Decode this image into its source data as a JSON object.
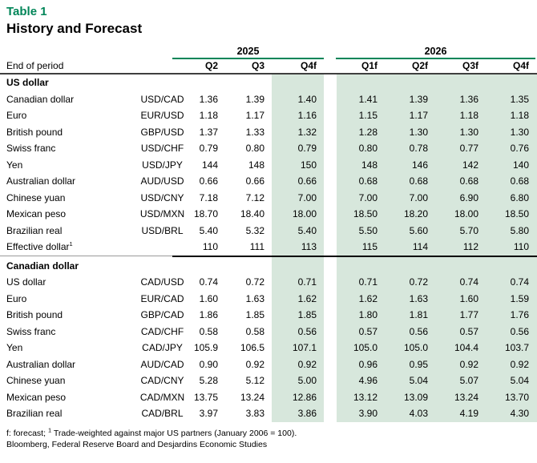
{
  "title": "Table 1",
  "subtitle": "History and Forecast",
  "colors": {
    "accent_green": "#008558",
    "forecast_shade_green": "#d7e7dc",
    "header_rule_gray": "#3f3f3f"
  },
  "table": {
    "corner_label": "End of period",
    "year_groups": [
      {
        "label": "2025",
        "quarters": [
          "Q2",
          "Q3",
          "Q4f"
        ]
      },
      {
        "label": "2026",
        "quarters": [
          "Q1f",
          "Q2f",
          "Q3f",
          "Q4f"
        ]
      }
    ],
    "sections": [
      {
        "title": "US dollar",
        "rows": [
          {
            "label": "Canadian dollar",
            "pair": "USD/CAD",
            "values": [
              "1.36",
              "1.39",
              "1.40",
              "1.41",
              "1.39",
              "1.36",
              "1.35"
            ]
          },
          {
            "label": "Euro",
            "pair": "EUR/USD",
            "values": [
              "1.18",
              "1.17",
              "1.16",
              "1.15",
              "1.17",
              "1.18",
              "1.18"
            ]
          },
          {
            "label": "British pound",
            "pair": "GBP/USD",
            "values": [
              "1.37",
              "1.33",
              "1.32",
              "1.28",
              "1.30",
              "1.30",
              "1.30"
            ]
          },
          {
            "label": "Swiss franc",
            "pair": "USD/CHF",
            "values": [
              "0.79",
              "0.80",
              "0.79",
              "0.80",
              "0.78",
              "0.77",
              "0.76"
            ]
          },
          {
            "label": "Yen",
            "pair": "USD/JPY",
            "values": [
              "144",
              "148",
              "150",
              "148",
              "146",
              "142",
              "140"
            ]
          },
          {
            "label": "Australian dollar",
            "pair": "AUD/USD",
            "values": [
              "0.66",
              "0.66",
              "0.66",
              "0.68",
              "0.68",
              "0.68",
              "0.68"
            ]
          },
          {
            "label": "Chinese yuan",
            "pair": "USD/CNY",
            "values": [
              "7.18",
              "7.12",
              "7.00",
              "7.00",
              "7.00",
              "6.90",
              "6.80"
            ]
          },
          {
            "label": "Mexican peso",
            "pair": "USD/MXN",
            "values": [
              "18.70",
              "18.40",
              "18.00",
              "18.50",
              "18.20",
              "18.00",
              "18.50"
            ]
          },
          {
            "label": "Brazilian real",
            "pair": "USD/BRL",
            "values": [
              "5.40",
              "5.32",
              "5.40",
              "5.50",
              "5.60",
              "5.70",
              "5.80"
            ]
          },
          {
            "label": "Effective dollar",
            "sup": "1",
            "pair": "",
            "values": [
              "110",
              "111",
              "113",
              "115",
              "114",
              "112",
              "110"
            ]
          }
        ]
      },
      {
        "title": "Canadian dollar",
        "rows": [
          {
            "label": "US dollar",
            "pair": "CAD/USD",
            "values": [
              "0.74",
              "0.72",
              "0.71",
              "0.71",
              "0.72",
              "0.74",
              "0.74"
            ]
          },
          {
            "label": "Euro",
            "pair": "EUR/CAD",
            "values": [
              "1.60",
              "1.63",
              "1.62",
              "1.62",
              "1.63",
              "1.60",
              "1.59"
            ]
          },
          {
            "label": "British pound",
            "pair": "GBP/CAD",
            "values": [
              "1.86",
              "1.85",
              "1.85",
              "1.80",
              "1.81",
              "1.77",
              "1.76"
            ]
          },
          {
            "label": "Swiss franc",
            "pair": "CAD/CHF",
            "values": [
              "0.58",
              "0.58",
              "0.56",
              "0.57",
              "0.56",
              "0.57",
              "0.56"
            ]
          },
          {
            "label": "Yen",
            "pair": "CAD/JPY",
            "values": [
              "105.9",
              "106.5",
              "107.1",
              "105.0",
              "105.0",
              "104.4",
              "103.7"
            ]
          },
          {
            "label": "Australian dollar",
            "pair": "AUD/CAD",
            "values": [
              "0.90",
              "0.92",
              "0.92",
              "0.96",
              "0.95",
              "0.92",
              "0.92"
            ]
          },
          {
            "label": "Chinese yuan",
            "pair": "CAD/CNY",
            "values": [
              "5.28",
              "5.12",
              "5.00",
              "4.96",
              "5.04",
              "5.07",
              "5.04"
            ]
          },
          {
            "label": "Mexican peso",
            "pair": "CAD/MXN",
            "values": [
              "13.75",
              "13.24",
              "12.86",
              "13.12",
              "13.09",
              "13.24",
              "13.70"
            ]
          },
          {
            "label": "Brazilian real",
            "pair": "CAD/BRL",
            "values": [
              "3.97",
              "3.83",
              "3.86",
              "3.90",
              "4.03",
              "4.19",
              "4.30"
            ]
          }
        ]
      }
    ]
  },
  "footnotes": {
    "line1_prefix": "f: forecast; ",
    "line1_sup": "1",
    "line1_text": " Trade-weighted against major US partners (January 2006 = 100).",
    "line2": "Bloomberg, Federal Reserve Board and Desjardins Economic Studies"
  }
}
